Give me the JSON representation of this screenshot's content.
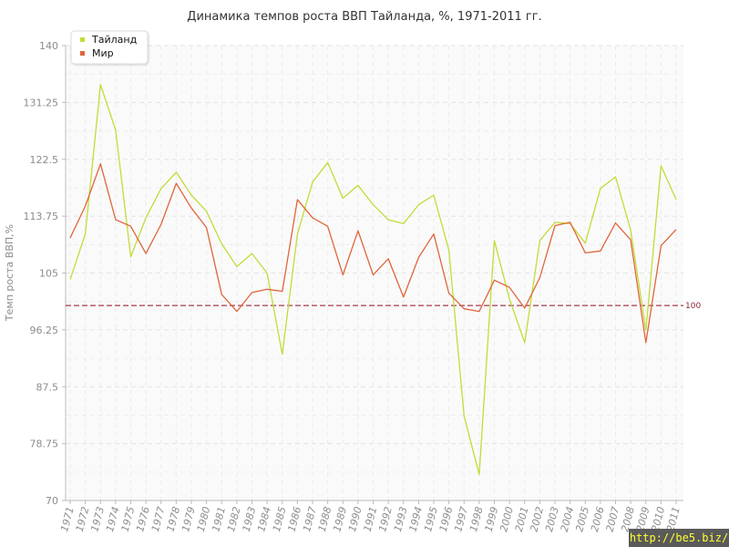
{
  "chart_data": {
    "type": "line",
    "title": "Динамика темпов роста ВВП Тайланда, %, 1971-2011 гг.",
    "ylabel": "Темп роста ВВП,%",
    "xlabel": "",
    "ylim": [
      70,
      140
    ],
    "yticks": [
      "70",
      "78.75",
      "87.5",
      "96.25",
      "105",
      "113.75",
      "122.5",
      "131.25",
      "140"
    ],
    "x": [
      "1971",
      "1972",
      "1973",
      "1974",
      "1975",
      "1976",
      "1977",
      "1978",
      "1979",
      "1980",
      "1981",
      "1982",
      "1983",
      "1984",
      "1985",
      "1986",
      "1987",
      "1988",
      "1989",
      "1990",
      "1991",
      "1992",
      "1993",
      "1994",
      "1995",
      "1996",
      "1997",
      "1998",
      "1999",
      "2000",
      "2001",
      "2002",
      "2003",
      "2004",
      "2005",
      "2006",
      "2007",
      "2008",
      "2009",
      "2010",
      "2011"
    ],
    "series": [
      {
        "name": "Тайланд",
        "color": "#c2dc38",
        "values": [
          104,
          111,
          134,
          127,
          107.5,
          113.5,
          118,
          120.5,
          117,
          114.5,
          109.5,
          106,
          108,
          105,
          92.5,
          111,
          119,
          122,
          116.5,
          118.5,
          115.5,
          113.2,
          112.6,
          115.5,
          117,
          108.5,
          83,
          74,
          110,
          101,
          94.3,
          110,
          112.8,
          112.6,
          109.6,
          118,
          119.8,
          111.6,
          96.2,
          121.5,
          116.3
        ]
      },
      {
        "name": "Мир",
        "color": "#e0653a",
        "values": [
          110.4,
          115.3,
          121.8,
          113.2,
          112.2,
          108,
          112.5,
          118.8,
          115,
          112,
          101.7,
          99.1,
          102,
          102.5,
          102.2,
          116.3,
          113.5,
          112.2,
          104.7,
          111.5,
          104.7,
          107.2,
          101.3,
          107.4,
          111,
          101.9,
          99.5,
          99.1,
          103.9,
          102.8,
          99.6,
          104.3,
          112.3,
          112.8,
          108.1,
          108.4,
          112.7,
          110.1,
          94.3,
          109.2,
          111.7
        ]
      }
    ],
    "reference": {
      "value": 100,
      "label": "100",
      "color": "#a8394e"
    },
    "grid": true,
    "legend": "top-left"
  },
  "watermark": "http://be5.biz/"
}
